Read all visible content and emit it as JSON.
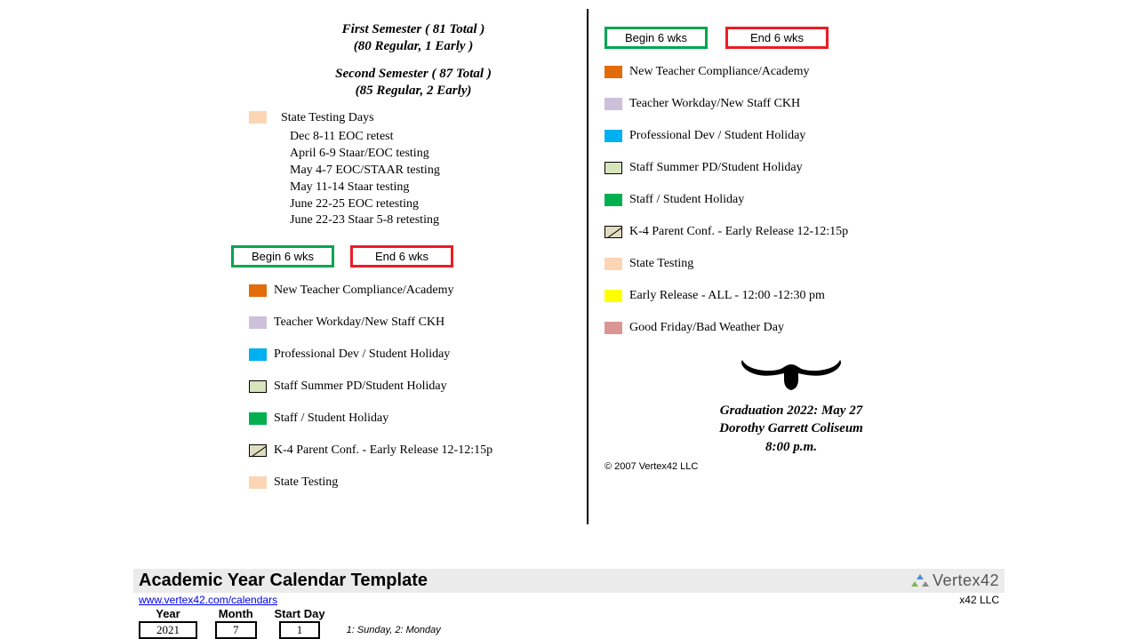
{
  "semesters": {
    "first_title": "First Semester ( 81 Total )",
    "first_sub": "(80 Regular, 1 Early )",
    "second_title": "Second Semester ( 87 Total )",
    "second_sub": "(85 Regular, 2 Early)"
  },
  "testing": {
    "header": "State Testing Days",
    "swatch_color": "#fcd5b4",
    "lines": [
      "Dec 8-11  EOC retest",
      "April 6-9  Staar/EOC testing",
      "May 4-7  EOC/STAAR testing",
      "May 11-14  Staar testing",
      "June 22-25  EOC retesting",
      "June 22-23  Staar 5-8 retesting"
    ]
  },
  "begin_label": "Begin 6 wks",
  "end_label": "End 6 wks",
  "begin_border": "#00a651",
  "end_border": "#ed1c24",
  "legend": [
    {
      "label": "New Teacher Compliance/Academy",
      "color": "#e26b0a",
      "border": false
    },
    {
      "label": "Teacher Workday/New Staff CKH",
      "color": "#ccc0da",
      "border": false
    },
    {
      "label": "Professional Dev / Student Holiday",
      "color": "#00b0f0",
      "border": false
    },
    {
      "label": "Staff Summer PD/Student Holiday",
      "color": "#d8e4bc",
      "border": true
    },
    {
      "label": "Staff / Student Holiday",
      "color": "#00b050",
      "border": false
    },
    {
      "label": "K-4 Parent Conf. - Early Release 12-12:15p",
      "diag": true
    },
    {
      "label": "State Testing",
      "color": "#fcd5b4",
      "border": false
    },
    {
      "label": "Early Release - ALL - 12:00 -12:30 pm",
      "color": "#ffff00",
      "border": false
    },
    {
      "label": "Good Friday/Bad Weather Day",
      "color": "#da9694",
      "border": false
    }
  ],
  "graduation": {
    "line1": "Graduation 2022: May 27",
    "line2": "Dorothy Garrett Coliseum",
    "line3": "8:00 p.m."
  },
  "copyright": "© 2007 Vertex42 LLC",
  "template": {
    "title": "Academic Year Calendar Template",
    "logo_text": "Vertex42",
    "link_text": "www.vertex42.com/calendars",
    "right_text": "x42 LLC",
    "year_label": "Year",
    "year_val": "2021",
    "month_label": "Month",
    "month_val": "7",
    "startday_label": "Start Day",
    "startday_val": "1",
    "startday_note": "1: Sunday, 2: Monday"
  }
}
